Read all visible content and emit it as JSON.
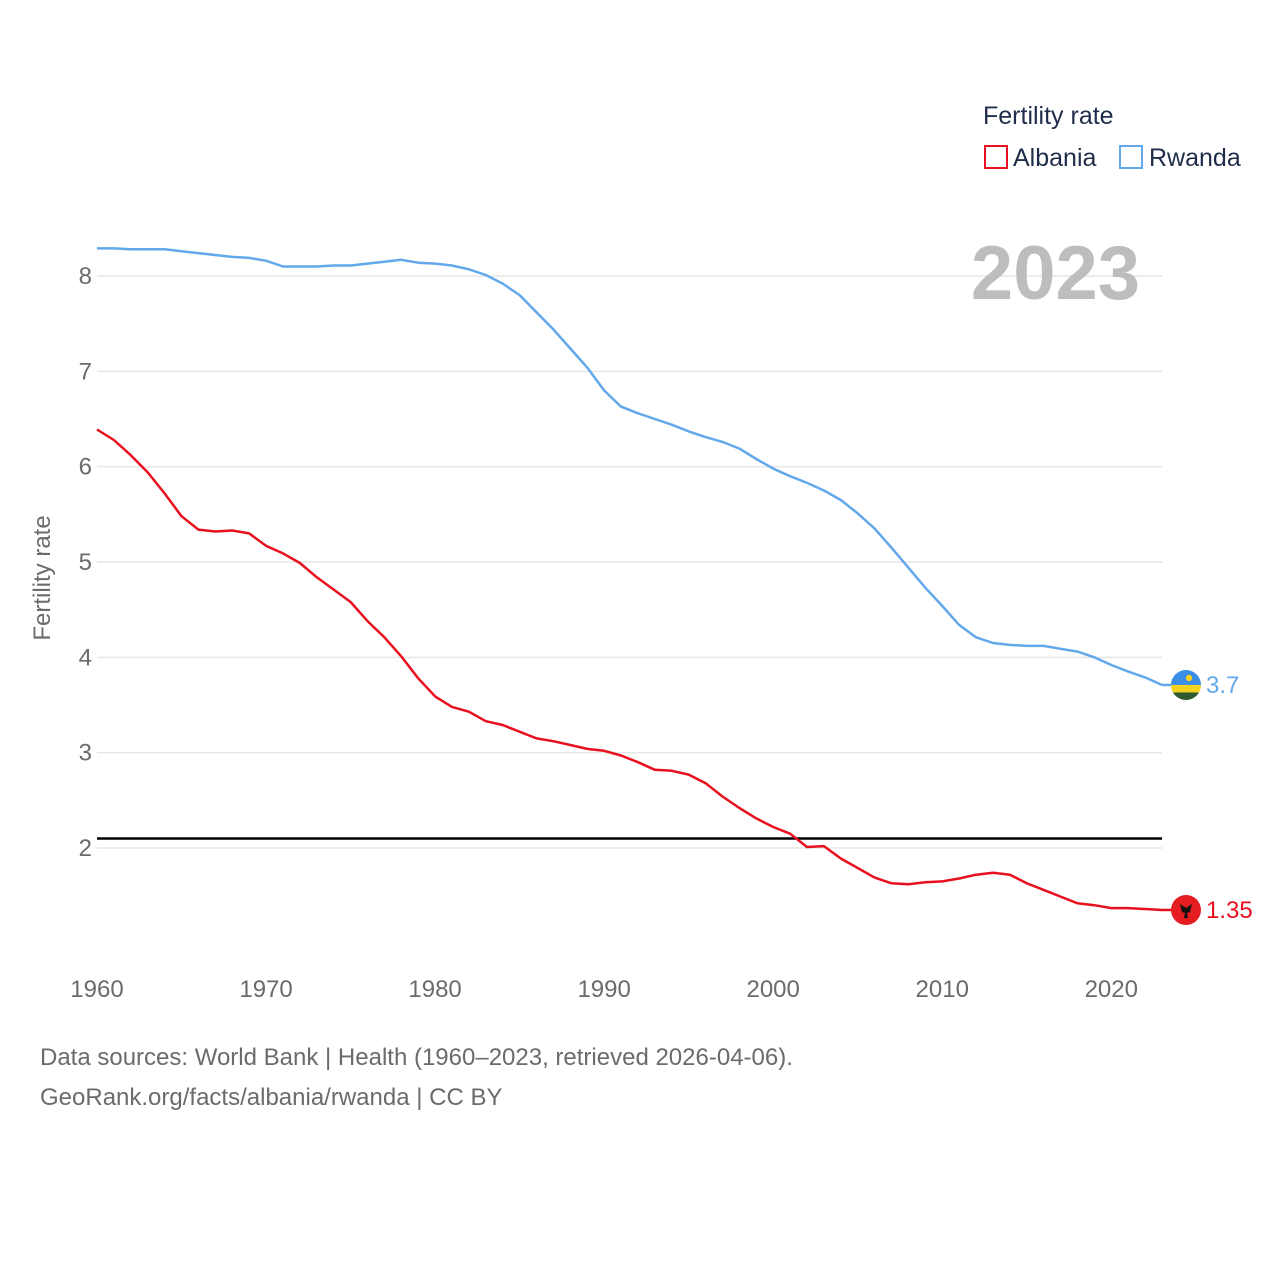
{
  "chart_data": {
    "type": "line",
    "ylabel": "Fertility rate",
    "xlabel": "",
    "xlim": [
      1960,
      2023
    ],
    "ylim": [
      1,
      8.5
    ],
    "x_ticks": [
      1960,
      1970,
      1980,
      1990,
      2000,
      2010,
      2020
    ],
    "y_ticks": [
      2,
      3,
      4,
      5,
      6,
      7,
      8
    ],
    "grid": true,
    "year_label": "2023",
    "legend": {
      "title": "Fertility rate",
      "position": "top-right"
    },
    "reference_line": {
      "y": 2.1,
      "color": "#000000"
    },
    "series": [
      {
        "name": "Albania",
        "color": "#e8101e",
        "end_label": "1.35",
        "flag": "albania-flag",
        "x": [
          1960,
          1961,
          1962,
          1963,
          1964,
          1965,
          1966,
          1967,
          1968,
          1969,
          1970,
          1971,
          1972,
          1973,
          1974,
          1975,
          1976,
          1977,
          1978,
          1979,
          1980,
          1981,
          1982,
          1983,
          1984,
          1985,
          1986,
          1987,
          1988,
          1989,
          1990,
          1991,
          1992,
          1993,
          1994,
          1995,
          1996,
          1997,
          1998,
          1999,
          2000,
          2001,
          2002,
          2003,
          2004,
          2005,
          2006,
          2007,
          2008,
          2009,
          2010,
          2011,
          2012,
          2013,
          2014,
          2015,
          2016,
          2017,
          2018,
          2019,
          2020,
          2021,
          2022,
          2023
        ],
        "values": [
          6.39,
          6.28,
          6.12,
          5.94,
          5.72,
          5.48,
          5.34,
          5.32,
          5.33,
          5.3,
          5.17,
          5.09,
          4.99,
          4.84,
          4.71,
          4.58,
          4.38,
          4.21,
          4.01,
          3.78,
          3.59,
          3.48,
          3.43,
          3.33,
          3.29,
          3.22,
          3.15,
          3.12,
          3.08,
          3.04,
          3.02,
          2.97,
          2.9,
          2.82,
          2.81,
          2.77,
          2.68,
          2.54,
          2.42,
          2.31,
          2.22,
          2.15,
          2.01,
          2.02,
          1.89,
          1.79,
          1.69,
          1.63,
          1.62,
          1.64,
          1.65,
          1.68,
          1.72,
          1.74,
          1.72,
          1.63,
          1.56,
          1.49,
          1.42,
          1.4,
          1.37,
          1.37,
          1.36,
          1.35
        ]
      },
      {
        "name": "Rwanda",
        "color": "#63a8ea",
        "end_label": "3.7",
        "flag": "rwanda-flag",
        "x": [
          1960,
          1961,
          1962,
          1963,
          1964,
          1965,
          1966,
          1967,
          1968,
          1969,
          1970,
          1971,
          1972,
          1973,
          1974,
          1975,
          1976,
          1977,
          1978,
          1979,
          1980,
          1981,
          1982,
          1983,
          1984,
          1985,
          1986,
          1987,
          1988,
          1989,
          1990,
          1991,
          1992,
          1993,
          1994,
          1995,
          1996,
          1997,
          1998,
          1999,
          2000,
          2001,
          2002,
          2003,
          2004,
          2005,
          2006,
          2007,
          2008,
          2009,
          2010,
          2011,
          2012,
          2013,
          2014,
          2015,
          2016,
          2017,
          2018,
          2019,
          2020,
          2021,
          2022,
          2023
        ],
        "values": [
          8.29,
          8.29,
          8.28,
          8.28,
          8.28,
          8.26,
          8.24,
          8.22,
          8.2,
          8.19,
          8.16,
          8.1,
          8.1,
          8.1,
          8.11,
          8.11,
          8.13,
          8.15,
          8.17,
          8.14,
          8.13,
          8.11,
          8.07,
          8.01,
          7.92,
          7.8,
          7.62,
          7.44,
          7.24,
          7.04,
          6.8,
          6.63,
          6.56,
          6.5,
          6.44,
          6.37,
          6.31,
          6.26,
          6.19,
          6.08,
          5.98,
          5.9,
          5.83,
          5.75,
          5.65,
          5.51,
          5.35,
          5.15,
          4.94,
          4.73,
          4.54,
          4.34,
          4.21,
          4.15,
          4.13,
          4.12,
          4.12,
          4.09,
          4.06,
          4.0,
          3.92,
          3.85,
          3.79,
          3.71
        ]
      }
    ]
  },
  "footer": {
    "line1": "Data sources: World Bank | Health (1960–2023, retrieved 2026-04-06).",
    "line2": "GeoRank.org/facts/albania/rwanda | CC BY"
  }
}
